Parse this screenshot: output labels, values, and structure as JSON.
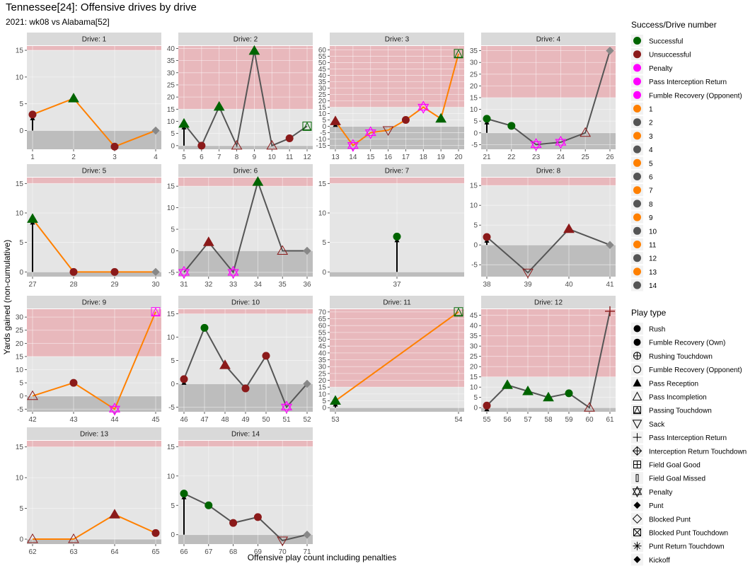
{
  "title": "Tennessee[24]: Offensive drives by drive",
  "subtitle": "2021: wk08 vs Alabama[52]",
  "chart_data": {
    "type": "line",
    "xlabel": "Offensive play count including penalties",
    "ylabel": "Yards gained (non-cumulative)",
    "colors": {
      "successful": "#006400",
      "unsuccessful": "#8b1a1a",
      "penalty": "#ff00ff",
      "odd_drive_line": "#ff8000",
      "even_drive_line": "#555555",
      "panel_bg": "#e5e5e5",
      "strip_bg": "#d9d9d9",
      "red_zone": "#e8b8bc",
      "below_zero": "#bdbdbd"
    },
    "legend_success": {
      "title": "Success/Drive number",
      "items": [
        {
          "label": "Successful",
          "kind": "circle",
          "color": "#006400"
        },
        {
          "label": "Unsuccessful",
          "kind": "circle",
          "color": "#8b1a1a"
        },
        {
          "label": "Penalty",
          "kind": "circle",
          "color": "#ff00ff"
        },
        {
          "label": "Pass Interception Return",
          "kind": "circle",
          "color": "#ff00ff"
        },
        {
          "label": "Fumble Recovery (Opponent)",
          "kind": "circle",
          "color": "#ff00ff"
        },
        {
          "label": "1",
          "kind": "circle",
          "color": "#ff8000"
        },
        {
          "label": "2",
          "kind": "circle",
          "color": "#555555"
        },
        {
          "label": "3",
          "kind": "circle",
          "color": "#ff8000"
        },
        {
          "label": "4",
          "kind": "circle",
          "color": "#555555"
        },
        {
          "label": "5",
          "kind": "circle",
          "color": "#ff8000"
        },
        {
          "label": "6",
          "kind": "circle",
          "color": "#555555"
        },
        {
          "label": "7",
          "kind": "circle",
          "color": "#ff8000"
        },
        {
          "label": "8",
          "kind": "circle",
          "color": "#555555"
        },
        {
          "label": "9",
          "kind": "circle",
          "color": "#ff8000"
        },
        {
          "label": "10",
          "kind": "circle",
          "color": "#555555"
        },
        {
          "label": "11",
          "kind": "circle",
          "color": "#ff8000"
        },
        {
          "label": "12",
          "kind": "circle",
          "color": "#555555"
        },
        {
          "label": "13",
          "kind": "circle",
          "color": "#ff8000"
        },
        {
          "label": "14",
          "kind": "circle",
          "color": "#555555"
        }
      ]
    },
    "legend_play": {
      "title": "Play type",
      "items": [
        {
          "label": "Rush",
          "shape": "circle"
        },
        {
          "label": "Fumble Recovery (Own)",
          "shape": "circle"
        },
        {
          "label": "Rushing Touchdown",
          "shape": "circle-plus"
        },
        {
          "label": "Fumble Recovery (Opponent)",
          "shape": "circle-open"
        },
        {
          "label": "Pass Reception",
          "shape": "triangle"
        },
        {
          "label": "Pass Incompletion",
          "shape": "triangle-open"
        },
        {
          "label": "Passing Touchdown",
          "shape": "square-triangle"
        },
        {
          "label": "Sack",
          "shape": "triangle-down-open"
        },
        {
          "label": "Pass Interception Return",
          "shape": "plus"
        },
        {
          "label": "Interception Return Touchdown",
          "shape": "diamond-plus"
        },
        {
          "label": "Field Goal Good",
          "shape": "square-plus"
        },
        {
          "label": "Field Goal Missed",
          "shape": "bar"
        },
        {
          "label": "Penalty",
          "shape": "star-of-david"
        },
        {
          "label": "Punt",
          "shape": "diamond"
        },
        {
          "label": "Blocked Punt",
          "shape": "diamond-open"
        },
        {
          "label": "Blocked Punt Touchdown",
          "shape": "square-x"
        },
        {
          "label": "Punt Return Touchdown",
          "shape": "asterisk"
        },
        {
          "label": "Kickoff",
          "shape": "diamond"
        }
      ]
    },
    "panels": [
      {
        "strip": "Drive: 1",
        "drive": 1,
        "xlim": [
          1,
          4
        ],
        "ylim": [
          -3.5,
          15.8
        ],
        "yticks": [
          0,
          5,
          10,
          15
        ],
        "red_zone": 15,
        "points": [
          {
            "x": 1,
            "y": 3,
            "shape": "circle",
            "fill": "#8b1a1a"
          },
          {
            "x": 2,
            "y": 6,
            "shape": "triangle",
            "fill": "#006400"
          },
          {
            "x": 3,
            "y": -3,
            "shape": "circle",
            "fill": "#8b1a1a"
          },
          {
            "x": 4,
            "y": 0,
            "shape": "diamond",
            "fill": "#888888"
          }
        ]
      },
      {
        "strip": "Drive: 2",
        "drive": 2,
        "xlim": [
          5,
          12
        ],
        "ylim": [
          -1.5,
          41
        ],
        "yticks": [
          0,
          5,
          10,
          15,
          20,
          25,
          30,
          35,
          40
        ],
        "red_zone": 15,
        "xticks": [
          5,
          6,
          7,
          8,
          9,
          10,
          11,
          12
        ],
        "points": [
          {
            "x": 5,
            "y": 9,
            "shape": "triangle",
            "fill": "#006400"
          },
          {
            "x": 6,
            "y": 0,
            "shape": "circle",
            "fill": "#8b1a1a"
          },
          {
            "x": 7,
            "y": 16,
            "shape": "triangle",
            "fill": "#006400"
          },
          {
            "x": 8,
            "y": 0,
            "shape": "triangle-open",
            "fill": "#8b1a1a"
          },
          {
            "x": 9,
            "y": 39,
            "shape": "triangle",
            "fill": "#006400"
          },
          {
            "x": 10,
            "y": 0,
            "shape": "triangle-open",
            "fill": "#8b1a1a"
          },
          {
            "x": 11,
            "y": 3,
            "shape": "circle",
            "fill": "#8b1a1a"
          },
          {
            "x": 12,
            "y": 8,
            "shape": "square-triangle",
            "fill": "#006400"
          }
        ]
      },
      {
        "strip": "Drive: 3",
        "drive": 3,
        "xlim": [
          13,
          20
        ],
        "ylim": [
          -18,
          63
        ],
        "yticks": [
          -15,
          -10,
          -5,
          0,
          5,
          10,
          15,
          20,
          25,
          30,
          35,
          40,
          45,
          50,
          55,
          60
        ],
        "red_zone": 15,
        "points": [
          {
            "x": 13,
            "y": 4,
            "shape": "triangle",
            "fill": "#8b1a1a"
          },
          {
            "x": 14,
            "y": -15,
            "shape": "star-of-david",
            "fill": "#ff00ff"
          },
          {
            "x": 15,
            "y": -5,
            "shape": "star-of-david",
            "fill": "#ff00ff"
          },
          {
            "x": 16,
            "y": -3,
            "shape": "triangle-down-open",
            "fill": "#8b1a1a"
          },
          {
            "x": 17,
            "y": 5,
            "shape": "circle",
            "fill": "#8b1a1a"
          },
          {
            "x": 18,
            "y": 15,
            "shape": "star-of-david",
            "fill": "#ff00ff"
          },
          {
            "x": 19,
            "y": 6,
            "shape": "triangle",
            "fill": "#006400"
          },
          {
            "x": 20,
            "y": 57,
            "shape": "square-triangle",
            "fill": "#006400"
          }
        ]
      },
      {
        "strip": "Drive: 4",
        "drive": 4,
        "xlim": [
          21,
          26
        ],
        "ylim": [
          -7,
          37
        ],
        "yticks": [
          -5,
          0,
          5,
          10,
          15,
          20,
          25,
          30,
          35
        ],
        "red_zone": 15,
        "points": [
          {
            "x": 21,
            "y": 6,
            "shape": "circle",
            "fill": "#006400"
          },
          {
            "x": 22,
            "y": 3,
            "shape": "circle",
            "fill": "#006400"
          },
          {
            "x": 23,
            "y": -5,
            "shape": "star-of-david",
            "fill": "#ff00ff"
          },
          {
            "x": 24,
            "y": -4,
            "shape": "star-of-david",
            "fill": "#ff00ff"
          },
          {
            "x": 25,
            "y": 0,
            "shape": "triangle-open",
            "fill": "#8b1a1a"
          },
          {
            "x": 26,
            "y": 35,
            "shape": "diamond",
            "fill": "#888888"
          }
        ]
      },
      {
        "strip": "Drive: 5",
        "drive": 5,
        "xlim": [
          27,
          30
        ],
        "ylim": [
          -0.8,
          16
        ],
        "yticks": [
          0,
          5,
          10,
          15
        ],
        "red_zone": 15,
        "points": [
          {
            "x": 27,
            "y": 9,
            "shape": "triangle",
            "fill": "#006400"
          },
          {
            "x": 28,
            "y": 0,
            "shape": "circle",
            "fill": "#8b1a1a"
          },
          {
            "x": 29,
            "y": 0,
            "shape": "circle",
            "fill": "#8b1a1a"
          },
          {
            "x": 30,
            "y": 0,
            "shape": "diamond",
            "fill": "#888888"
          }
        ]
      },
      {
        "strip": "Drive: 6",
        "drive": 6,
        "xlim": [
          31,
          36
        ],
        "ylim": [
          -6,
          17
        ],
        "yticks": [
          -5,
          0,
          5,
          10,
          15
        ],
        "red_zone": 15,
        "points": [
          {
            "x": 31,
            "y": -5,
            "shape": "star-of-david",
            "fill": "#ff00ff"
          },
          {
            "x": 32,
            "y": 2,
            "shape": "triangle",
            "fill": "#8b1a1a"
          },
          {
            "x": 33,
            "y": -5,
            "shape": "star-of-david",
            "fill": "#ff00ff"
          },
          {
            "x": 34,
            "y": 16,
            "shape": "triangle",
            "fill": "#006400"
          },
          {
            "x": 35,
            "y": 0,
            "shape": "triangle-open",
            "fill": "#8b1a1a"
          },
          {
            "x": 36,
            "y": 0,
            "shape": "diamond",
            "fill": "#888888"
          }
        ]
      },
      {
        "strip": "Drive: 7",
        "drive": 7,
        "xlim": [
          36,
          38
        ],
        "ylim": [
          -0.8,
          16
        ],
        "yticks": [
          0,
          5,
          10,
          15
        ],
        "red_zone": 15,
        "xticks": [
          37
        ],
        "points": [
          {
            "x": 37,
            "y": 6,
            "shape": "circle",
            "fill": "#006400"
          }
        ]
      },
      {
        "strip": "Drive: 8",
        "drive": 8,
        "xlim": [
          38,
          41
        ],
        "ylim": [
          -8,
          17
        ],
        "yticks": [
          -5,
          0,
          5,
          10,
          15
        ],
        "red_zone": 15,
        "points": [
          {
            "x": 38,
            "y": 2,
            "shape": "circle",
            "fill": "#8b1a1a"
          },
          {
            "x": 39,
            "y": -7,
            "shape": "triangle-down-open",
            "fill": "#8b1a1a"
          },
          {
            "x": 40,
            "y": 4,
            "shape": "triangle",
            "fill": "#8b1a1a"
          },
          {
            "x": 41,
            "y": 0,
            "shape": "diamond",
            "fill": "#888888"
          }
        ]
      },
      {
        "strip": "Drive: 9",
        "drive": 9,
        "xlim": [
          42,
          45
        ],
        "ylim": [
          -6,
          33
        ],
        "yticks": [
          -5,
          0,
          5,
          10,
          15,
          20,
          25,
          30
        ],
        "red_zone": 15,
        "points": [
          {
            "x": 42,
            "y": 0,
            "shape": "triangle-open",
            "fill": "#8b1a1a"
          },
          {
            "x": 43,
            "y": 5,
            "shape": "circle",
            "fill": "#8b1a1a"
          },
          {
            "x": 44,
            "y": -5,
            "shape": "star-of-david",
            "fill": "#ff00ff"
          },
          {
            "x": 45,
            "y": 32,
            "shape": "square-triangle",
            "fill": "#ff00ff"
          }
        ]
      },
      {
        "strip": "Drive: 10",
        "drive": 10,
        "xlim": [
          46,
          52
        ],
        "ylim": [
          -6,
          16
        ],
        "yticks": [
          -5,
          0,
          5,
          10,
          15
        ],
        "red_zone": 15,
        "points": [
          {
            "x": 46,
            "y": 1,
            "shape": "circle",
            "fill": "#8b1a1a"
          },
          {
            "x": 47,
            "y": 12,
            "shape": "circle",
            "fill": "#006400"
          },
          {
            "x": 48,
            "y": 4,
            "shape": "triangle",
            "fill": "#8b1a1a"
          },
          {
            "x": 49,
            "y": -1,
            "shape": "circle",
            "fill": "#8b1a1a"
          },
          {
            "x": 50,
            "y": 6,
            "shape": "circle",
            "fill": "#8b1a1a"
          },
          {
            "x": 51,
            "y": -5,
            "shape": "star-of-david",
            "fill": "#ff00ff"
          },
          {
            "x": 52,
            "y": 0,
            "shape": "diamond",
            "fill": "#888888"
          }
        ]
      },
      {
        "strip": "Drive: 11",
        "drive": 11,
        "xlim": [
          53,
          54
        ],
        "ylim": [
          -3,
          72
        ],
        "yticks": [
          0,
          5,
          10,
          15,
          20,
          25,
          30,
          35,
          40,
          45,
          50,
          55,
          60,
          65,
          70
        ],
        "red_zone": 15,
        "points": [
          {
            "x": 53,
            "y": 5,
            "shape": "triangle",
            "fill": "#006400"
          },
          {
            "x": 54,
            "y": 70,
            "shape": "square-triangle",
            "fill": "#006400"
          }
        ]
      },
      {
        "strip": "Drive: 12",
        "drive": 12,
        "xlim": [
          55,
          61
        ],
        "ylim": [
          -2,
          48
        ],
        "yticks": [
          0,
          5,
          10,
          15,
          20,
          25,
          30,
          35,
          40,
          45
        ],
        "red_zone": 15,
        "points": [
          {
            "x": 55,
            "y": 1,
            "shape": "circle",
            "fill": "#8b1a1a"
          },
          {
            "x": 56,
            "y": 11,
            "shape": "triangle",
            "fill": "#006400"
          },
          {
            "x": 57,
            "y": 8,
            "shape": "triangle",
            "fill": "#006400"
          },
          {
            "x": 58,
            "y": 5,
            "shape": "triangle",
            "fill": "#006400"
          },
          {
            "x": 59,
            "y": 7,
            "shape": "circle",
            "fill": "#006400"
          },
          {
            "x": 60,
            "y": 0,
            "shape": "triangle-open",
            "fill": "#8b1a1a"
          },
          {
            "x": 61,
            "y": 47,
            "shape": "plus",
            "fill": "#8b1a1a"
          }
        ]
      },
      {
        "strip": "Drive: 13",
        "drive": 13,
        "xlim": [
          62,
          65
        ],
        "ylim": [
          -0.8,
          16
        ],
        "yticks": [
          0,
          5,
          10,
          15
        ],
        "red_zone": 15,
        "points": [
          {
            "x": 62,
            "y": 0,
            "shape": "triangle-open",
            "fill": "#8b1a1a"
          },
          {
            "x": 63,
            "y": 0,
            "shape": "triangle-open",
            "fill": "#8b1a1a"
          },
          {
            "x": 64,
            "y": 4,
            "shape": "triangle",
            "fill": "#8b1a1a"
          },
          {
            "x": 65,
            "y": 1,
            "shape": "circle",
            "fill": "#8b1a1a"
          }
        ]
      },
      {
        "strip": "Drive: 14",
        "drive": 14,
        "xlim": [
          66,
          71
        ],
        "ylim": [
          -1.6,
          16
        ],
        "yticks": [
          0,
          5,
          10,
          15
        ],
        "red_zone": 15,
        "points": [
          {
            "x": 66,
            "y": 7,
            "shape": "circle",
            "fill": "#006400"
          },
          {
            "x": 67,
            "y": 5,
            "shape": "circle",
            "fill": "#006400"
          },
          {
            "x": 68,
            "y": 2,
            "shape": "circle",
            "fill": "#8b1a1a"
          },
          {
            "x": 69,
            "y": 3,
            "shape": "circle",
            "fill": "#8b1a1a"
          },
          {
            "x": 70,
            "y": -1,
            "shape": "triangle-down-open",
            "fill": "#8b1a1a"
          },
          {
            "x": 71,
            "y": 0,
            "shape": "diamond",
            "fill": "#888888"
          }
        ]
      }
    ]
  }
}
